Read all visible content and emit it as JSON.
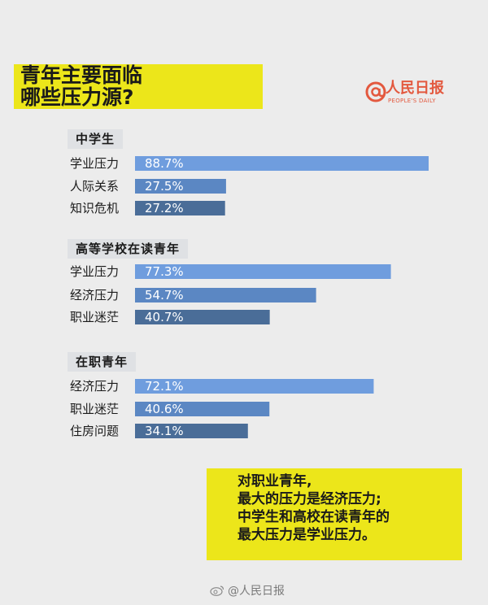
{
  "title_lines": [
    "青年主要面临",
    "哪些压力源?"
  ],
  "brand": {
    "name": "人民日报",
    "sub": "PEOPLE'S DAILY",
    "color": "#e3593f"
  },
  "colors": {
    "background": "#ececec",
    "highlight": "#ece61a",
    "bar_light": "#6f9dde",
    "bar_mid": "#5b87c3",
    "bar_dark": "#4a6d98",
    "label_text": "#1a1a1a",
    "value_text": "#ffffff"
  },
  "chart_data": {
    "type": "bar",
    "orientation": "horizontal",
    "value_unit": "%",
    "xlim": [
      0,
      100
    ],
    "groups": [
      {
        "name": "中学生",
        "categories": [
          "学业压力",
          "人际关系",
          "知识危机"
        ],
        "values": [
          88.7,
          27.5,
          27.2
        ],
        "labels": [
          "88.7%",
          "27.5%",
          "27.2%"
        ]
      },
      {
        "name": "高等学校在读青年",
        "categories": [
          "学业压力",
          "经济压力",
          "职业迷茫"
        ],
        "values": [
          77.3,
          54.7,
          40.7
        ],
        "labels": [
          "77.3%",
          "54.7%",
          "40.7%"
        ]
      },
      {
        "name": "在职青年",
        "categories": [
          "经济压力",
          "职业迷茫",
          "住房问题"
        ],
        "values": [
          72.1,
          40.6,
          34.1
        ],
        "labels": [
          "72.1%",
          "40.6%",
          "34.1%"
        ]
      }
    ]
  },
  "conclusion_lines": [
    "对职业青年,",
    "最大的压力是经济压力;",
    "中学生和高校在读青年的",
    "最大压力是学业压力。"
  ],
  "watermark": "@人民日报"
}
